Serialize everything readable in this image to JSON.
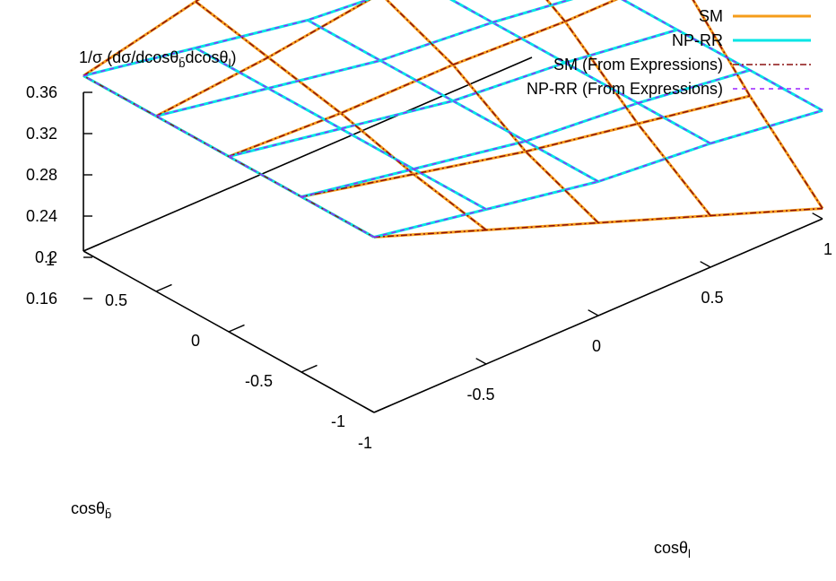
{
  "chart_data": {
    "type": "surface3d",
    "zlabel": "1/σ  (dσ/dcosθ",
    "zlabel_sub1": "b̄",
    "zlabel_mid": "dcosθ",
    "zlabel_sub2": "l",
    "zlabel_end": ")",
    "xlabel": "cosθ",
    "xlabel_sub": "l",
    "ylabel": "cosθ",
    "ylabel_sub": "b̄",
    "z_ticks": [
      "0.36",
      "0.32",
      "0.28",
      "0.24",
      "0.2",
      "0.16"
    ],
    "z_tick_values": [
      0.36,
      0.32,
      0.28,
      0.24,
      0.2,
      0.16
    ],
    "x_ticks": [
      "-1",
      "-0.5",
      "0",
      "0.5",
      "1"
    ],
    "y_ticks": [
      "1",
      "0.5",
      "0",
      "-0.5",
      "-1"
    ],
    "zlim": [
      0.08,
      0.36
    ],
    "xlim": [
      -1,
      1
    ],
    "ylim": [
      -1,
      1
    ],
    "grid": [
      -1,
      -0.5,
      0,
      0.5,
      1
    ],
    "legend_position": "top-right",
    "series": [
      {
        "name": "SM",
        "color": "#f59d1b",
        "style": "solid",
        "values": [
          [
            0.25,
            0.21,
            0.17,
            0.13,
            0.09
          ],
          [
            0.25,
            0.225,
            0.2,
            0.18,
            0.16
          ],
          [
            0.25,
            0.245,
            0.245,
            0.24,
            0.24
          ],
          [
            0.25,
            0.26,
            0.275,
            0.285,
            0.3
          ],
          [
            0.25,
            0.275,
            0.3,
            0.33,
            0.35
          ]
        ]
      },
      {
        "name": "NP-RR",
        "color": "#00e5e5",
        "style": "solid",
        "values": [
          [
            0.25,
            0.23,
            0.21,
            0.2,
            0.185
          ],
          [
            0.25,
            0.23,
            0.21,
            0.2,
            0.185
          ],
          [
            0.25,
            0.23,
            0.21,
            0.2,
            0.185
          ],
          [
            0.25,
            0.23,
            0.21,
            0.2,
            0.185
          ],
          [
            0.25,
            0.23,
            0.21,
            0.2,
            0.185
          ]
        ]
      },
      {
        "name": "SM (From Expressions)",
        "color": "#8b1010",
        "style": "dashdot",
        "values": [
          [
            0.25,
            0.21,
            0.17,
            0.13,
            0.09
          ],
          [
            0.25,
            0.225,
            0.2,
            0.18,
            0.16
          ],
          [
            0.25,
            0.245,
            0.245,
            0.24,
            0.24
          ],
          [
            0.25,
            0.26,
            0.275,
            0.285,
            0.3
          ],
          [
            0.25,
            0.275,
            0.3,
            0.33,
            0.35
          ]
        ]
      },
      {
        "name": "NP-RR (From Expressions)",
        "color": "#9b22ff",
        "style": "dashed",
        "values": [
          [
            0.25,
            0.23,
            0.21,
            0.2,
            0.185
          ],
          [
            0.25,
            0.23,
            0.21,
            0.2,
            0.185
          ],
          [
            0.25,
            0.23,
            0.21,
            0.2,
            0.185
          ],
          [
            0.25,
            0.23,
            0.21,
            0.2,
            0.185
          ],
          [
            0.25,
            0.23,
            0.21,
            0.2,
            0.185
          ]
        ]
      }
    ]
  }
}
